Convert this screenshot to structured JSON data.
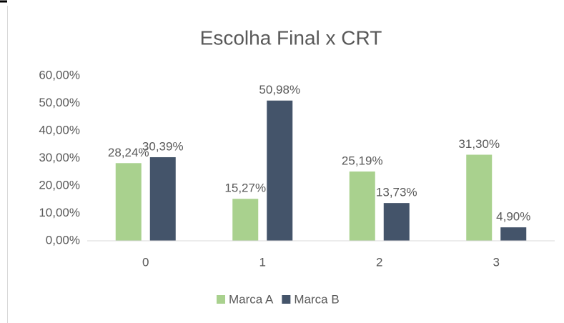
{
  "chart_data": {
    "type": "bar",
    "title": "Escolha Final x CRT",
    "categories": [
      "0",
      "1",
      "2",
      "3"
    ],
    "series": [
      {
        "name": "Marca A",
        "color": "#a9d18e",
        "values": [
          28.24,
          15.27,
          25.19,
          31.3
        ],
        "value_labels": [
          "28,24%",
          "15,27%",
          "25,19%",
          "31,30%"
        ]
      },
      {
        "name": "Marca B",
        "color": "#44546a",
        "values": [
          30.39,
          50.98,
          13.73,
          4.9
        ],
        "value_labels": [
          "30,39%",
          "50,98%",
          "13,73%",
          "4,90%"
        ]
      }
    ],
    "ylim": [
      0,
      60
    ],
    "yticks": [
      {
        "value": 0,
        "label": "0,00%"
      },
      {
        "value": 10,
        "label": "10,00%"
      },
      {
        "value": 20,
        "label": "20,00%"
      },
      {
        "value": 30,
        "label": "30,00%"
      },
      {
        "value": 40,
        "label": "40,00%"
      },
      {
        "value": 50,
        "label": "50,00%"
      },
      {
        "value": 60,
        "label": "60,00%"
      }
    ],
    "grid": false,
    "legend": "bottom"
  }
}
